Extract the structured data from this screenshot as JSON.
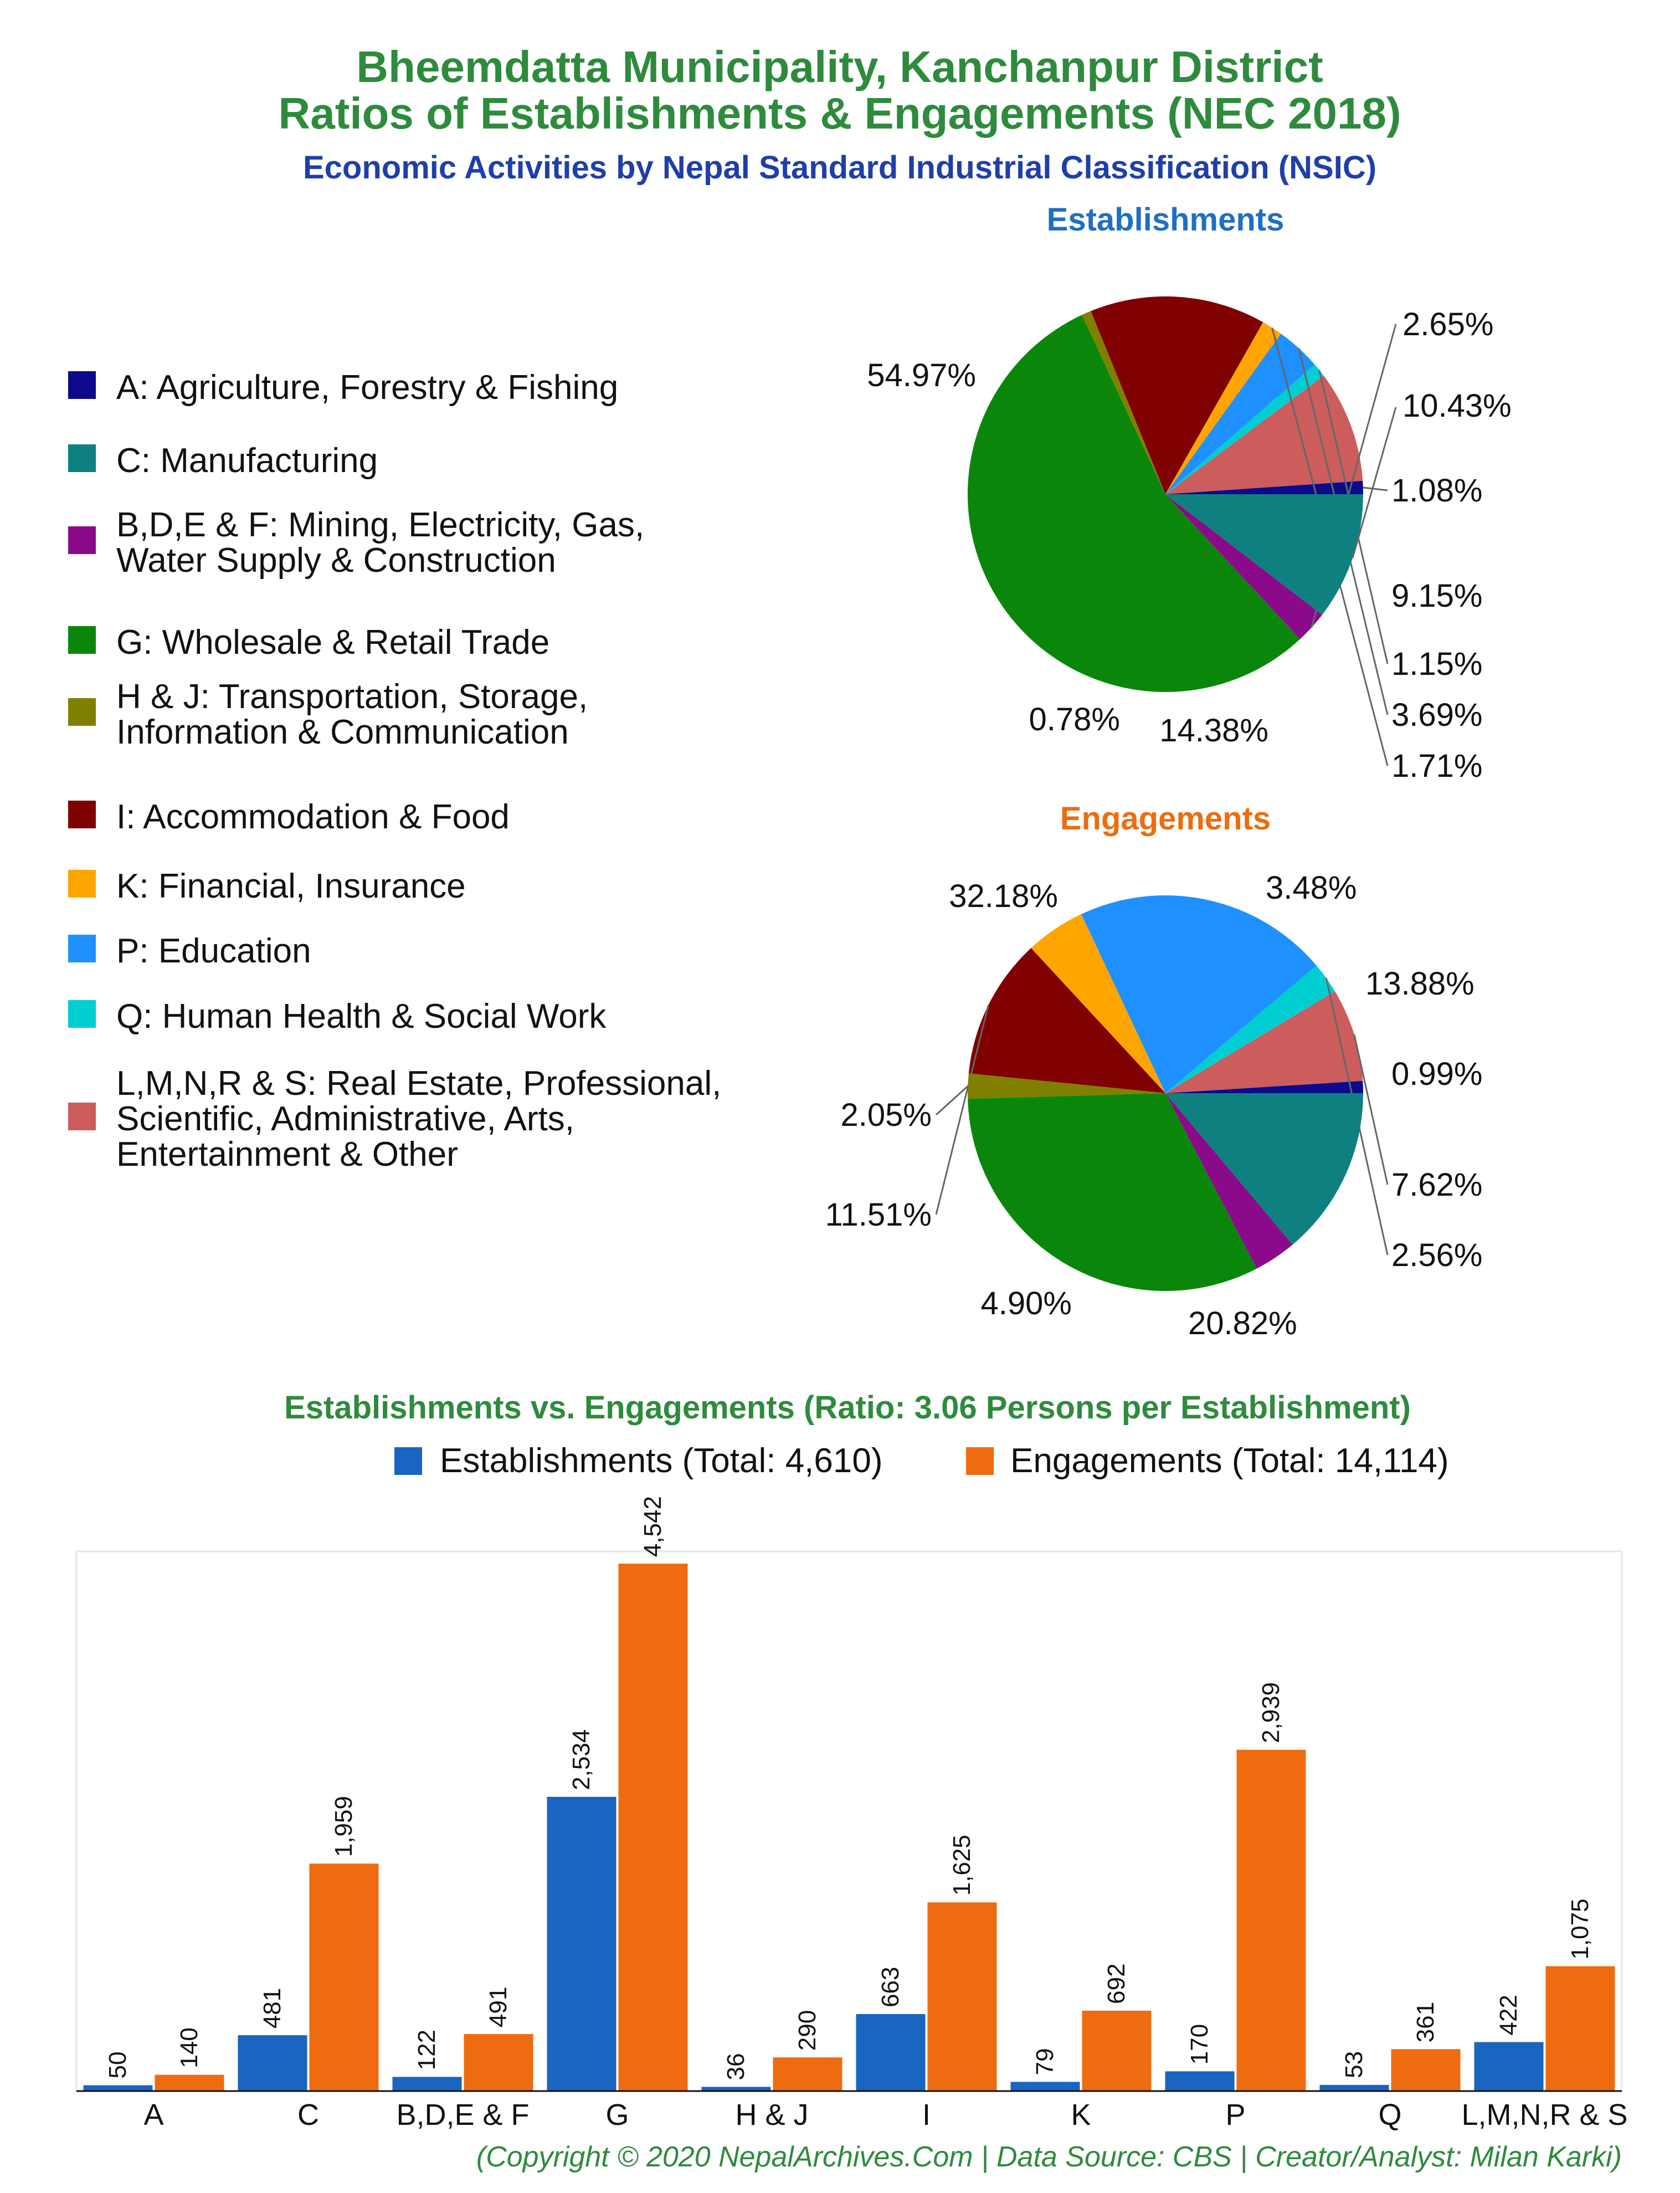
{
  "header": {
    "title_line1": "Bheemdatta Municipality, Kanchanpur District",
    "title_line2": "Ratios of Establishments & Engagements (NEC 2018)",
    "subtitle": "Economic Activities by Nepal Standard Industrial Classification (NSIC)"
  },
  "legend": [
    {
      "lines": [
        "A: Agriculture, Forestry & Fishing"
      ],
      "color": "#0a0a8a"
    },
    {
      "lines": [
        "C: Manufacturing"
      ],
      "color": "#0f8080"
    },
    {
      "lines": [
        "B,D,E & F: Mining, Electricity, Gas,",
        "Water Supply & Construction"
      ],
      "color": "#8a0a8a"
    },
    {
      "lines": [
        "G: Wholesale & Retail Trade"
      ],
      "color": "#0a870a"
    },
    {
      "lines": [
        "H & J: Transportation, Storage,",
        "Information & Communication"
      ],
      "color": "#808000"
    },
    {
      "lines": [
        "I: Accommodation & Food"
      ],
      "color": "#800000"
    },
    {
      "lines": [
        "K: Financial, Insurance"
      ],
      "color": "#ffa500"
    },
    {
      "lines": [
        "P: Education"
      ],
      "color": "#1e90ff"
    },
    {
      "lines": [
        "Q: Human Health & Social Work"
      ],
      "color": "#00ced1"
    },
    {
      "lines": [
        "L,M,N,R & S: Real Estate, Professional,",
        "Scientific, Administrative, Arts,",
        "Entertainment & Other"
      ],
      "color": "#cd5c5c"
    }
  ],
  "chart_data": [
    {
      "type": "pie",
      "title": "Establishments",
      "slices": [
        {
          "category": "A",
          "value": 1.08,
          "label": "1.08%"
        },
        {
          "category": "L,M,N,R & S",
          "value": 9.15,
          "label": "9.15%"
        },
        {
          "category": "Q",
          "value": 1.15,
          "label": "1.15%"
        },
        {
          "category": "P",
          "value": 3.69,
          "label": "3.69%"
        },
        {
          "category": "K",
          "value": 1.71,
          "label": "1.71%"
        },
        {
          "category": "I",
          "value": 14.38,
          "label": "14.38%"
        },
        {
          "category": "H & J",
          "value": 0.78,
          "label": "0.78%"
        },
        {
          "category": "G",
          "value": 54.97,
          "label": "54.97%"
        },
        {
          "category": "B,D,E & F",
          "value": 2.65,
          "label": "2.65%"
        },
        {
          "category": "C",
          "value": 10.43,
          "label": "10.43%"
        }
      ]
    },
    {
      "type": "pie",
      "title": "Engagements",
      "slices": [
        {
          "category": "A",
          "value": 0.99,
          "label": "0.99%"
        },
        {
          "category": "L,M,N,R & S",
          "value": 7.62,
          "label": "7.62%"
        },
        {
          "category": "Q",
          "value": 2.56,
          "label": "2.56%"
        },
        {
          "category": "P",
          "value": 20.82,
          "label": "20.82%"
        },
        {
          "category": "K",
          "value": 4.9,
          "label": "4.90%"
        },
        {
          "category": "I",
          "value": 11.51,
          "label": "11.51%"
        },
        {
          "category": "H & J",
          "value": 2.05,
          "label": "2.05%"
        },
        {
          "category": "G",
          "value": 32.18,
          "label": "32.18%"
        },
        {
          "category": "B,D,E & F",
          "value": 3.48,
          "label": "3.48%"
        },
        {
          "category": "C",
          "value": 13.88,
          "label": "13.88%"
        }
      ]
    },
    {
      "type": "bar",
      "title": "Establishments vs. Engagements (Ratio: 3.06 Persons per Establishment)",
      "categories": [
        "A",
        "C",
        "B,D,E & F",
        "G",
        "H & J",
        "I",
        "K",
        "P",
        "Q",
        "L,M,N,R & S"
      ],
      "series": [
        {
          "name": "Establishments (Total: 4,610)",
          "color": "#1a64c2",
          "values": [
            50,
            481,
            122,
            2534,
            36,
            663,
            79,
            170,
            53,
            422
          ],
          "labels": [
            "50",
            "481",
            "122",
            "2,534",
            "36",
            "663",
            "79",
            "170",
            "53",
            "422"
          ]
        },
        {
          "name": "Engagements (Total: 14,114)",
          "color": "#ee6c0f",
          "values": [
            140,
            1959,
            491,
            4542,
            290,
            1625,
            692,
            2939,
            361,
            1075
          ],
          "labels": [
            "140",
            "1,959",
            "491",
            "4,542",
            "290",
            "1,625",
            "692",
            "2,939",
            "361",
            "1,075"
          ]
        }
      ],
      "ylim": [
        0,
        4600
      ],
      "grid": false,
      "legend_position": "top"
    }
  ],
  "footer": {
    "credit": "(Copyright © 2020 NepalArchives.Com | Data Source: CBS | Creator/Analyst: Milan Karki)"
  }
}
